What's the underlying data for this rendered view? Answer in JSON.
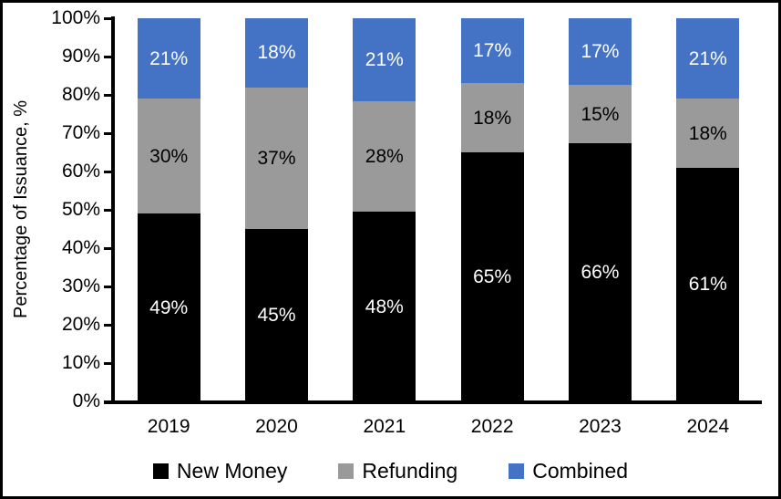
{
  "chart_data": {
    "type": "bar",
    "stacked": true,
    "percent_stacked": true,
    "title": "",
    "xlabel": "",
    "ylabel": "Percentage of Issuance, %",
    "ylim": [
      0,
      100
    ],
    "y_tick_step": 10,
    "y_tick_labels": [
      "0%",
      "10%",
      "20%",
      "30%",
      "40%",
      "50%",
      "60%",
      "70%",
      "80%",
      "90%",
      "100%"
    ],
    "grid": false,
    "categories": [
      "2019",
      "2020",
      "2021",
      "2022",
      "2023",
      "2024"
    ],
    "series": [
      {
        "name": "New Money",
        "color": "#000000",
        "label_color": "#ffffff",
        "values": [
          49,
          45,
          48,
          65,
          66,
          61
        ],
        "labels": [
          "49%",
          "45%",
          "48%",
          "65%",
          "66%",
          "61%"
        ]
      },
      {
        "name": "Refunding",
        "color": "#9A9A9A",
        "label_color": "#000000",
        "values": [
          30,
          37,
          28,
          18,
          15,
          18
        ],
        "labels": [
          "30%",
          "37%",
          "28%",
          "18%",
          "15%",
          "18%"
        ]
      },
      {
        "name": "Combined",
        "color": "#4472C4",
        "label_color": "#ffffff",
        "values": [
          21,
          18,
          21,
          17,
          17,
          21
        ],
        "labels": [
          "21%",
          "18%",
          "21%",
          "17%",
          "17%",
          "21%"
        ]
      }
    ],
    "legend": {
      "position": "bottom",
      "entries": [
        "New Money",
        "Refunding",
        "Combined"
      ]
    },
    "axis_color": "#000000",
    "background_color": "#ffffff",
    "border_color": "#000000"
  }
}
